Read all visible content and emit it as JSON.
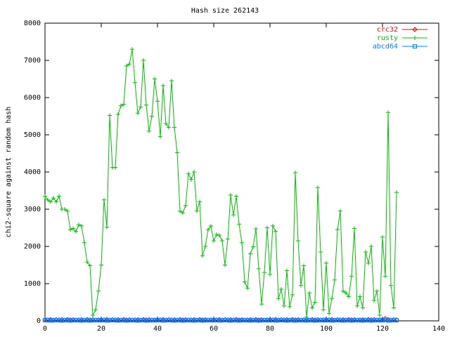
{
  "chart_data": {
    "type": "line",
    "title": "Hash size 262143",
    "y_label": "chi2-square against random hash",
    "xlim": [
      0,
      140
    ],
    "xticks": [
      0,
      20,
      40,
      60,
      80,
      100,
      120,
      140
    ],
    "ylim": [
      0,
      8000
    ],
    "yticks": [
      0,
      1000,
      2000,
      3000,
      4000,
      5000,
      6000,
      7000,
      8000
    ],
    "legend": "top-right",
    "x": [
      0,
      1,
      2,
      3,
      4,
      5,
      6,
      7,
      8,
      9,
      10,
      11,
      12,
      13,
      14,
      15,
      16,
      17,
      18,
      19,
      20,
      21,
      22,
      23,
      24,
      25,
      26,
      27,
      28,
      29,
      30,
      31,
      32,
      33,
      34,
      35,
      36,
      37,
      38,
      39,
      40,
      41,
      42,
      43,
      44,
      45,
      46,
      47,
      48,
      49,
      50,
      51,
      52,
      53,
      54,
      55,
      56,
      57,
      58,
      59,
      60,
      61,
      62,
      63,
      64,
      65,
      66,
      67,
      68,
      69,
      70,
      71,
      72,
      73,
      74,
      75,
      76,
      77,
      78,
      79,
      80,
      81,
      82,
      83,
      84,
      85,
      86,
      87,
      88,
      89,
      90,
      91,
      92,
      93,
      94,
      95,
      96,
      97,
      98,
      99,
      100,
      101,
      102,
      103,
      104,
      105,
      106,
      107,
      108,
      109,
      110,
      111,
      112,
      113,
      114,
      115,
      116,
      117,
      118,
      119,
      120,
      121,
      122,
      123,
      124,
      125
    ],
    "series": [
      {
        "name": "crc32",
        "color": "#ff0000",
        "marker": "diamond",
        "values": [
          30,
          25,
          35,
          20,
          30,
          25,
          30,
          20,
          35,
          25,
          30,
          20,
          25,
          30,
          20,
          35,
          25,
          30,
          20,
          25,
          30,
          25,
          35,
          20,
          30,
          25,
          30,
          20,
          35,
          25,
          30,
          20,
          25,
          30,
          20,
          35,
          25,
          30,
          20,
          25,
          30,
          25,
          35,
          20,
          30,
          25,
          30,
          20,
          35,
          25,
          30,
          20,
          25,
          30,
          20,
          35,
          25,
          30,
          20,
          25,
          30,
          25,
          35,
          20,
          30,
          25,
          30,
          20,
          35,
          25,
          30,
          20,
          25,
          30,
          20,
          35,
          25,
          30,
          20,
          25,
          30,
          25,
          35,
          20,
          30,
          25,
          30,
          20,
          35,
          25,
          30,
          20,
          25,
          30,
          20,
          35,
          25,
          30,
          20,
          25,
          30,
          25,
          35,
          20,
          30,
          25,
          30,
          20,
          35,
          25,
          30,
          20,
          25,
          30,
          20,
          35,
          25,
          30,
          20,
          25,
          30,
          60,
          35,
          20,
          30,
          25
        ]
      },
      {
        "name": "rusty",
        "color": "#00c000",
        "marker": "plus",
        "values": [
          3350,
          3250,
          3200,
          3300,
          3200,
          3350,
          3000,
          3000,
          2950,
          2450,
          2480,
          2400,
          2580,
          2550,
          2100,
          1580,
          1480,
          150,
          300,
          800,
          1500,
          3250,
          2520,
          5520,
          4120,
          4120,
          5550,
          5780,
          5820,
          6850,
          6900,
          7300,
          6400,
          5580,
          5750,
          7000,
          5800,
          5100,
          5500,
          6500,
          5900,
          4950,
          6320,
          5300,
          5200,
          6450,
          5200,
          4520,
          2950,
          2900,
          3100,
          3950,
          3800,
          4000,
          2950,
          3200,
          1750,
          2000,
          2450,
          2550,
          2150,
          2320,
          2300,
          2150,
          1500,
          2200,
          3380,
          2850,
          3350,
          2600,
          2100,
          1050,
          880,
          1800,
          1990,
          2470,
          1400,
          450,
          1300,
          2500,
          1250,
          2550,
          2400,
          600,
          850,
          400,
          1350,
          380,
          700,
          3980,
          2150,
          950,
          1480,
          100,
          750,
          350,
          500,
          3580,
          1850,
          300,
          1550,
          200,
          600,
          1100,
          2450,
          2950,
          800,
          750,
          650,
          1200,
          2480,
          400,
          650,
          350,
          1850,
          1550,
          2000,
          550,
          800,
          150,
          2250,
          1200,
          5600,
          950,
          350,
          3450
        ]
      },
      {
        "name": "abcd64",
        "color": "#0080ff",
        "marker": "square",
        "values": [
          15,
          20,
          10,
          15,
          20,
          15,
          10,
          20,
          15,
          10,
          15,
          20,
          15,
          10,
          20,
          15,
          10,
          15,
          20,
          15,
          15,
          20,
          10,
          15,
          20,
          15,
          10,
          20,
          15,
          10,
          15,
          20,
          15,
          10,
          20,
          15,
          10,
          15,
          20,
          15,
          15,
          20,
          10,
          15,
          20,
          15,
          10,
          20,
          15,
          10,
          15,
          20,
          15,
          10,
          20,
          15,
          10,
          15,
          20,
          15,
          15,
          20,
          10,
          15,
          20,
          15,
          10,
          20,
          15,
          10,
          15,
          20,
          15,
          10,
          20,
          15,
          10,
          15,
          20,
          15,
          15,
          20,
          10,
          15,
          20,
          15,
          10,
          20,
          15,
          10,
          15,
          20,
          15,
          10,
          20,
          15,
          10,
          15,
          20,
          15,
          15,
          20,
          10,
          15,
          20,
          15,
          10,
          20,
          15,
          10,
          15,
          20,
          15,
          10,
          20,
          15,
          10,
          15,
          20,
          15,
          15,
          20,
          10,
          15,
          20,
          15
        ]
      }
    ]
  }
}
